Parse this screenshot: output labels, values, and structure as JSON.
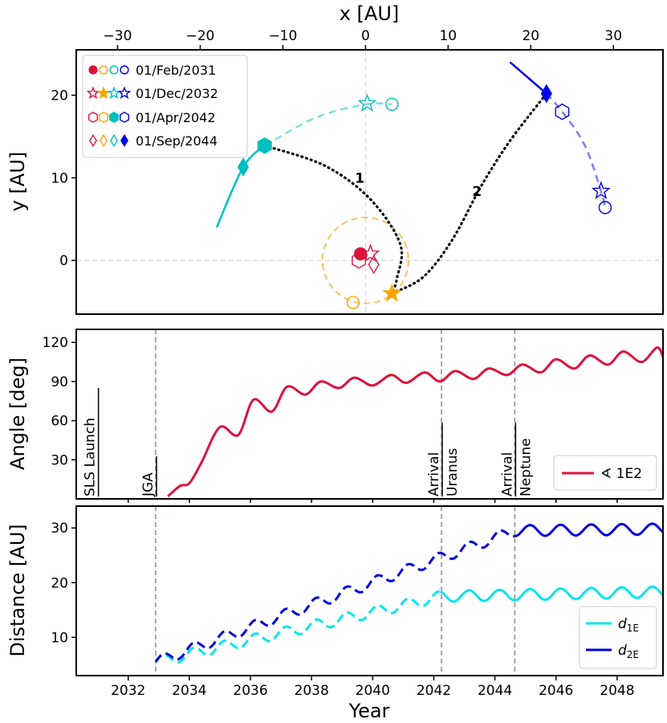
{
  "chart_data": [
    {
      "type": "line",
      "panel": "trajectory",
      "xlabel": "x [AU]",
      "ylabel": "y [AU]",
      "xlim": [
        -35,
        36
      ],
      "ylim": [
        -6.5,
        25.5
      ],
      "xticks": [
        -30,
        -20,
        -10,
        0,
        10,
        20,
        30
      ],
      "xtick_labels": [
        "−30",
        "−20",
        "−10",
        "0",
        "10",
        "20",
        "30"
      ],
      "yticks": [
        0,
        10,
        20
      ],
      "ytick_labels": [
        "0",
        "10",
        "20"
      ],
      "colors": {
        "earth": "#dc143c",
        "jupiter": "#ffa500",
        "uranus": "#00bfbf",
        "neptune": "#0000e6"
      },
      "legend": [
        {
          "label": "01/Feb/2031",
          "marker": "circle"
        },
        {
          "label": "01/Dec/2032",
          "marker": "star"
        },
        {
          "label": "01/Apr/2042",
          "marker": "hexagon"
        },
        {
          "label": "01/Sep/2044",
          "marker": "diamond"
        }
      ],
      "orbits": {
        "jupiter_circle_radius": 5.2,
        "uranus_arc": [
          [
            -18,
            4
          ],
          [
            -14.8,
            11.3
          ],
          [
            -12.2,
            13.9
          ],
          [
            -6,
            17.3
          ],
          [
            0,
            18.9
          ],
          [
            3.2,
            18.9
          ]
        ],
        "neptune_arc": [
          [
            17.5,
            24
          ],
          [
            21.9,
            20.2
          ],
          [
            23.8,
            18.0
          ],
          [
            26.5,
            14.0
          ],
          [
            28.5,
            8.4
          ],
          [
            29.0,
            6.4
          ]
        ]
      },
      "trajectories": [
        {
          "label": "1",
          "points": [
            [
              -12.2,
              13.9
            ],
            [
              -5,
              11.5
            ],
            [
              0.5,
              7.5
            ],
            [
              4.2,
              2.0
            ],
            [
              3.8,
              -2.2
            ],
            [
              3.2,
              -4.0
            ]
          ]
        },
        {
          "label": "2",
          "points": [
            [
              3.2,
              -4.0
            ],
            [
              7,
              -2.0
            ],
            [
              10.5,
              2.5
            ],
            [
              14,
              9.0
            ],
            [
              17.5,
              14.5
            ],
            [
              21.9,
              20.2
            ]
          ]
        }
      ],
      "markers": [
        {
          "body": "earth",
          "epoch": "01/Feb/2031",
          "shape": "circle",
          "filled": true,
          "x": -0.6,
          "y": 0.8
        },
        {
          "body": "earth",
          "epoch": "01/Dec/2032",
          "shape": "star",
          "filled": false,
          "x": 0.6,
          "y": 0.8
        },
        {
          "body": "earth",
          "epoch": "01/Apr/2042",
          "shape": "hexagon",
          "filled": false,
          "x": -0.8,
          "y": 0.0
        },
        {
          "body": "earth",
          "epoch": "01/Sep/2044",
          "shape": "diamond",
          "filled": false,
          "x": 1.0,
          "y": -0.5
        },
        {
          "body": "jupiter",
          "epoch": "01/Feb/2031",
          "shape": "circle",
          "filled": false,
          "x": -1.5,
          "y": -5.1
        },
        {
          "body": "jupiter",
          "epoch": "01/Dec/2032",
          "shape": "star",
          "filled": true,
          "x": 3.2,
          "y": -4.0
        },
        {
          "body": "uranus",
          "epoch": "01/Feb/2031",
          "shape": "circle",
          "filled": false,
          "x": 3.2,
          "y": 18.9
        },
        {
          "body": "uranus",
          "epoch": "01/Dec/2032",
          "shape": "star",
          "filled": false,
          "x": 0.2,
          "y": 19.0
        },
        {
          "body": "uranus",
          "epoch": "01/Apr/2042",
          "shape": "hexagon",
          "filled": true,
          "x": -12.2,
          "y": 13.9
        },
        {
          "body": "uranus",
          "epoch": "01/Sep/2044",
          "shape": "diamond",
          "filled": true,
          "x": -14.8,
          "y": 11.3
        },
        {
          "body": "neptune",
          "epoch": "01/Feb/2031",
          "shape": "circle",
          "filled": false,
          "x": 29.0,
          "y": 6.4
        },
        {
          "body": "neptune",
          "epoch": "01/Dec/2032",
          "shape": "star",
          "filled": false,
          "x": 28.5,
          "y": 8.4
        },
        {
          "body": "neptune",
          "epoch": "01/Apr/2042",
          "shape": "hexagon",
          "filled": false,
          "x": 23.8,
          "y": 18.0
        },
        {
          "body": "neptune",
          "epoch": "01/Sep/2044",
          "shape": "diamond",
          "filled": true,
          "x": 21.9,
          "y": 20.2
        }
      ]
    },
    {
      "type": "line",
      "panel": "angle",
      "ylabel": "Angle [deg]",
      "xlim": [
        2030.3,
        2049.5
      ],
      "ylim": [
        0,
        130
      ],
      "yticks": [
        30,
        60,
        90,
        120
      ],
      "ytick_labels": [
        "30",
        "60",
        "90",
        "120"
      ],
      "series": [
        {
          "name": "∢ 1E2",
          "color": "#dc143c",
          "x": [
            2033.3,
            2033.7,
            2034.0,
            2034.4,
            2035.0,
            2035.6,
            2036.1,
            2036.7,
            2037.2,
            2037.8,
            2038.3,
            2038.9,
            2039.4,
            2040.0,
            2040.6,
            2041.1,
            2041.7,
            2042.2,
            2042.7,
            2043.3,
            2043.8,
            2044.4,
            2044.9,
            2045.5,
            2046.0,
            2046.6,
            2047.1,
            2047.7,
            2048.2,
            2048.8,
            2049.3,
            2049.5
          ],
          "y": [
            2,
            10,
            12,
            28,
            55,
            49,
            76,
            67,
            86,
            80,
            90,
            85,
            93,
            87,
            95,
            89,
            97,
            90,
            98,
            92,
            100,
            95,
            103,
            97,
            107,
            100,
            110,
            103,
            113,
            105,
            116,
            109
          ]
        }
      ],
      "events": [
        {
          "label": "SLS Launch",
          "x": 2031.0,
          "line": false
        },
        {
          "label": "JGA",
          "x": 2032.9,
          "line": true
        },
        {
          "label_lines": [
            "Arrival",
            "Uranus"
          ],
          "x": 2042.25,
          "line": true
        },
        {
          "label_lines": [
            "Arrival",
            "Neptune"
          ],
          "x": 2044.65,
          "line": true
        }
      ],
      "legend": "lower right"
    },
    {
      "type": "line",
      "panel": "distance",
      "xlabel": "Year",
      "ylabel": "Distance [AU]",
      "xlim": [
        2030.3,
        2049.5
      ],
      "ylim": [
        3,
        34
      ],
      "xticks": [
        2032,
        2034,
        2036,
        2038,
        2040,
        2042,
        2044,
        2046,
        2048
      ],
      "xtick_labels": [
        "2032",
        "2034",
        "2036",
        "2038",
        "2040",
        "2042",
        "2044",
        "2046",
        "2048"
      ],
      "yticks": [
        10,
        20,
        30
      ],
      "ytick_labels": [
        "10",
        "20",
        "30"
      ],
      "series": [
        {
          "name": "d1E",
          "label_main": "d",
          "label_sub": "1E",
          "color": "#00e5ee",
          "start": 2032.9,
          "switch": 2042.25,
          "trend": [
            [
              2032.9,
              5.5
            ],
            [
              2042.25,
              17.5
            ],
            [
              2049.5,
              18.3
            ]
          ],
          "amplitude": 1.0
        },
        {
          "name": "d2E",
          "label_main": "d",
          "label_sub": "2E",
          "color": "#0000dd",
          "start": 2032.9,
          "switch": 2044.65,
          "trend": [
            [
              2032.9,
              5.5
            ],
            [
              2044.65,
              29.5
            ],
            [
              2049.5,
              29.8
            ]
          ],
          "amplitude": 1.0
        }
      ],
      "legend": "lower right"
    }
  ]
}
